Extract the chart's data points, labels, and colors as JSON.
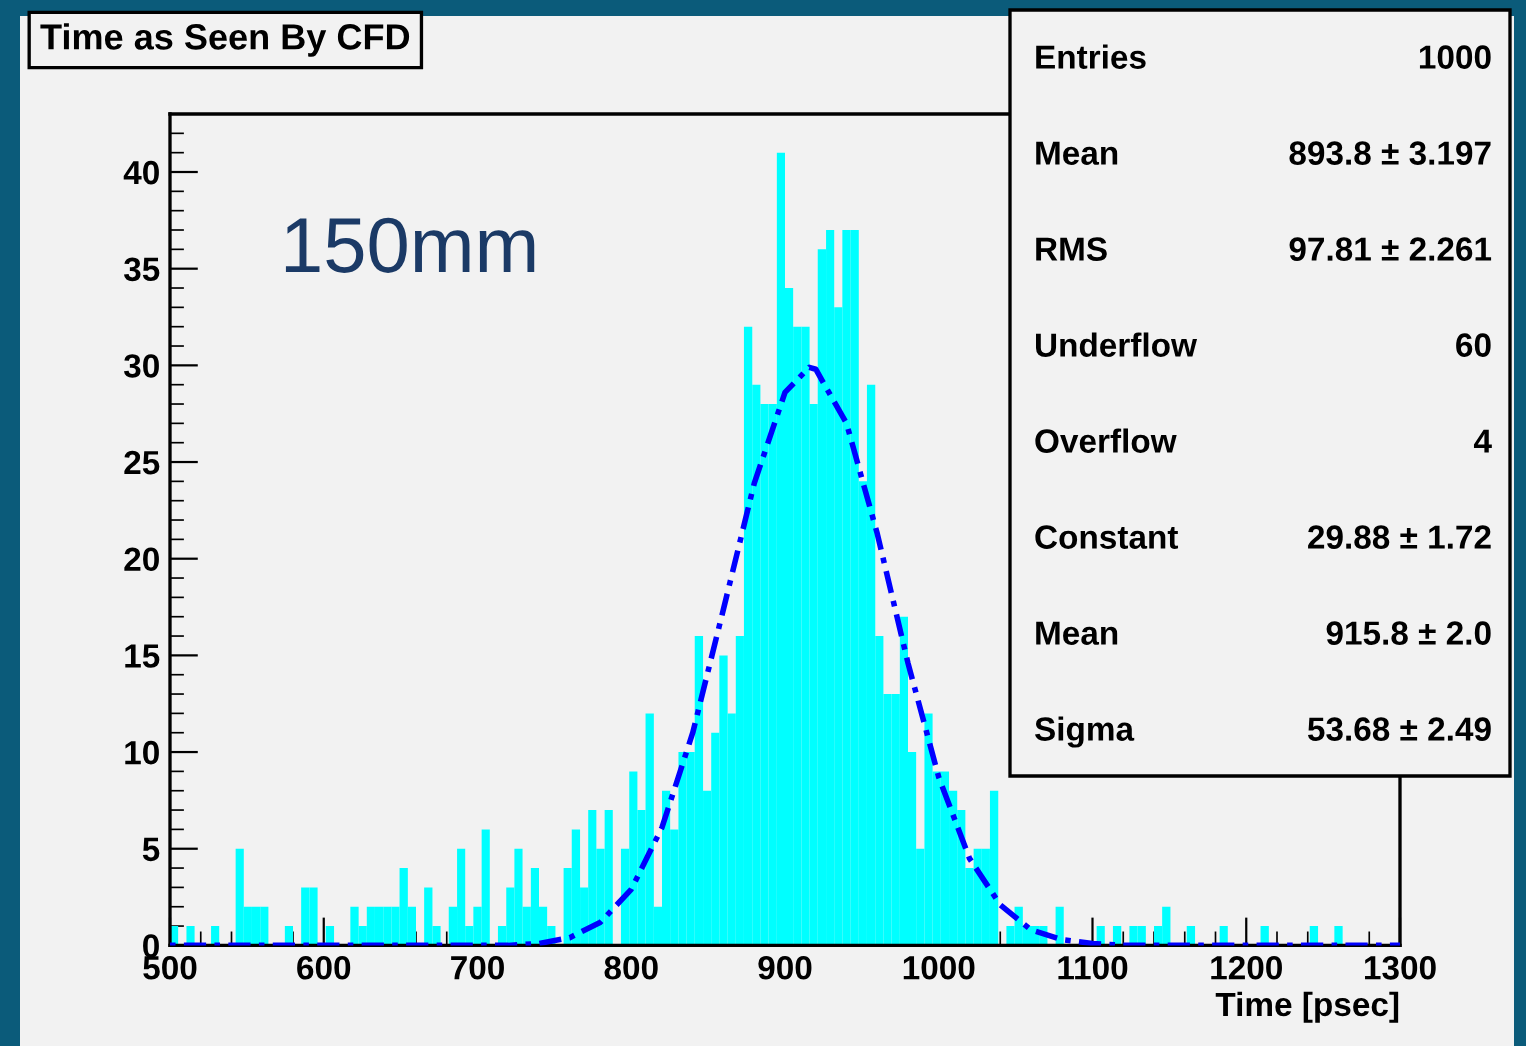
{
  "chart_data": {
    "type": "histogram",
    "title": "Time as Seen By CFD",
    "xlabel": "Time [psec]",
    "bins": [
      500,
      505.3,
      510.7,
      516,
      521.3,
      526.7,
      532,
      537.3,
      542.7,
      548,
      553.3,
      558.7,
      564,
      569.3,
      574.7,
      580,
      585.3,
      590.7,
      596,
      601.3,
      606.7,
      612,
      617.3,
      622.7,
      628,
      633.3,
      638.7,
      644,
      649.3,
      654.7,
      660,
      665.3,
      670.7,
      676,
      681.3,
      686.7,
      692,
      697.3,
      702.7,
      708,
      713.3,
      718.7,
      724,
      729.3,
      734.7,
      740,
      745.3,
      750.7,
      756,
      761.3,
      766.7,
      772,
      777.3,
      782.7,
      788,
      793.3,
      798.7,
      804,
      809.3,
      814.7,
      820,
      825.3,
      830.7,
      836,
      841.3,
      846.7,
      852,
      857.3,
      862.7,
      868,
      873.3,
      878.7,
      884,
      889.3,
      894.7,
      900,
      905.3,
      910.7,
      916,
      921.3,
      926.7,
      932,
      937.3,
      942.7,
      948,
      953.3,
      958.7,
      964,
      969.3,
      974.7,
      980,
      985.3,
      990.7,
      996,
      1001.3,
      1006.7,
      1012,
      1017.3,
      1022.7,
      1028,
      1033.3,
      1038.7,
      1044,
      1049.3,
      1054.7,
      1060,
      1065.3,
      1070.7,
      1076,
      1081.3,
      1086.7,
      1092,
      1097.3,
      1102.7,
      1108,
      1113.3,
      1118.7,
      1124,
      1129.3,
      1134.7,
      1140,
      1145.3,
      1150.7,
      1156,
      1161.3,
      1166.7,
      1172,
      1177.3,
      1182.7,
      1188,
      1193.3,
      1198.7,
      1204,
      1209.3,
      1214.7,
      1220,
      1225.3,
      1230.7,
      1236,
      1241.3,
      1246.7,
      1252,
      1257.3,
      1262.7,
      1268,
      1273.3,
      1278.7,
      1284,
      1289.3,
      1294.7,
      1300
    ],
    "series": [
      {
        "color": "#00ffff",
        "values": [
          1,
          0,
          1,
          0,
          0,
          1,
          0,
          0,
          5,
          2,
          2,
          2,
          0,
          0,
          1,
          0,
          3,
          3,
          0,
          1,
          0,
          0,
          2,
          1,
          2,
          2,
          2,
          2,
          4,
          2,
          0,
          3,
          1,
          0,
          2,
          5,
          1,
          2,
          6,
          0,
          1,
          3,
          5,
          2,
          4,
          2,
          1,
          0,
          4,
          6,
          3,
          7,
          5,
          7,
          0,
          5,
          9,
          7,
          12,
          2,
          8,
          6,
          10,
          10,
          16,
          8,
          11,
          15,
          12,
          16,
          32,
          29,
          28,
          28,
          41,
          34,
          32,
          32,
          28,
          36,
          37,
          33,
          37,
          37,
          24,
          29,
          16,
          13,
          13,
          17,
          10,
          5,
          12,
          9,
          9,
          8,
          7,
          4,
          5,
          5,
          8,
          0,
          1,
          2,
          1,
          1,
          1,
          0,
          2,
          0,
          0,
          0,
          0,
          1,
          0,
          1,
          0,
          1,
          1,
          0,
          1,
          2,
          0,
          0,
          1,
          0,
          0,
          0,
          1,
          0,
          0,
          0,
          0,
          1,
          0,
          0,
          0,
          0,
          0,
          1,
          0,
          0,
          1,
          0,
          0,
          0,
          0,
          0,
          0,
          0
        ]
      },
      {
        "type": "line",
        "color": "#0000ff",
        "line_style": "dotted",
        "marker": "none",
        "x": [
          500,
          700,
          720,
          740,
          760,
          780,
          800,
          820,
          840,
          860,
          880,
          900,
          915.8,
          920,
          940,
          960,
          980,
          1000,
          1020,
          1040,
          1060,
          1080,
          1100,
          1120,
          1300
        ],
        "values": [
          0,
          0,
          0,
          0.1,
          0.4,
          1.2,
          2.9,
          6.1,
          11.0,
          17.4,
          23.9,
          28.6,
          29.9,
          29.8,
          27.0,
          21.3,
          14.6,
          8.7,
          4.5,
          2.1,
          0.8,
          0.3,
          0.1,
          0,
          0
        ]
      }
    ],
    "xlim": [
      500,
      1300
    ],
    "xticks": [
      500,
      600,
      700,
      800,
      900,
      1000,
      1100,
      1200,
      1300
    ],
    "ylim": [
      0,
      43
    ],
    "yticks": [
      0,
      5,
      10,
      15,
      20,
      25,
      30,
      35,
      40
    ],
    "grid": false,
    "legend": false,
    "annotations": [
      "150mm",
      "Entries",
      "1000",
      "Mean",
      "893.8 ± 3.197",
      "RMS",
      "97.81 ± 2.261",
      "Underflow",
      "60",
      "Overflow",
      "4",
      "Constant",
      "29.88 ± 1.72",
      "Mean",
      "915.8 ± 2.0",
      "Sigma",
      "53.68 ± 2.49"
    ]
  }
}
